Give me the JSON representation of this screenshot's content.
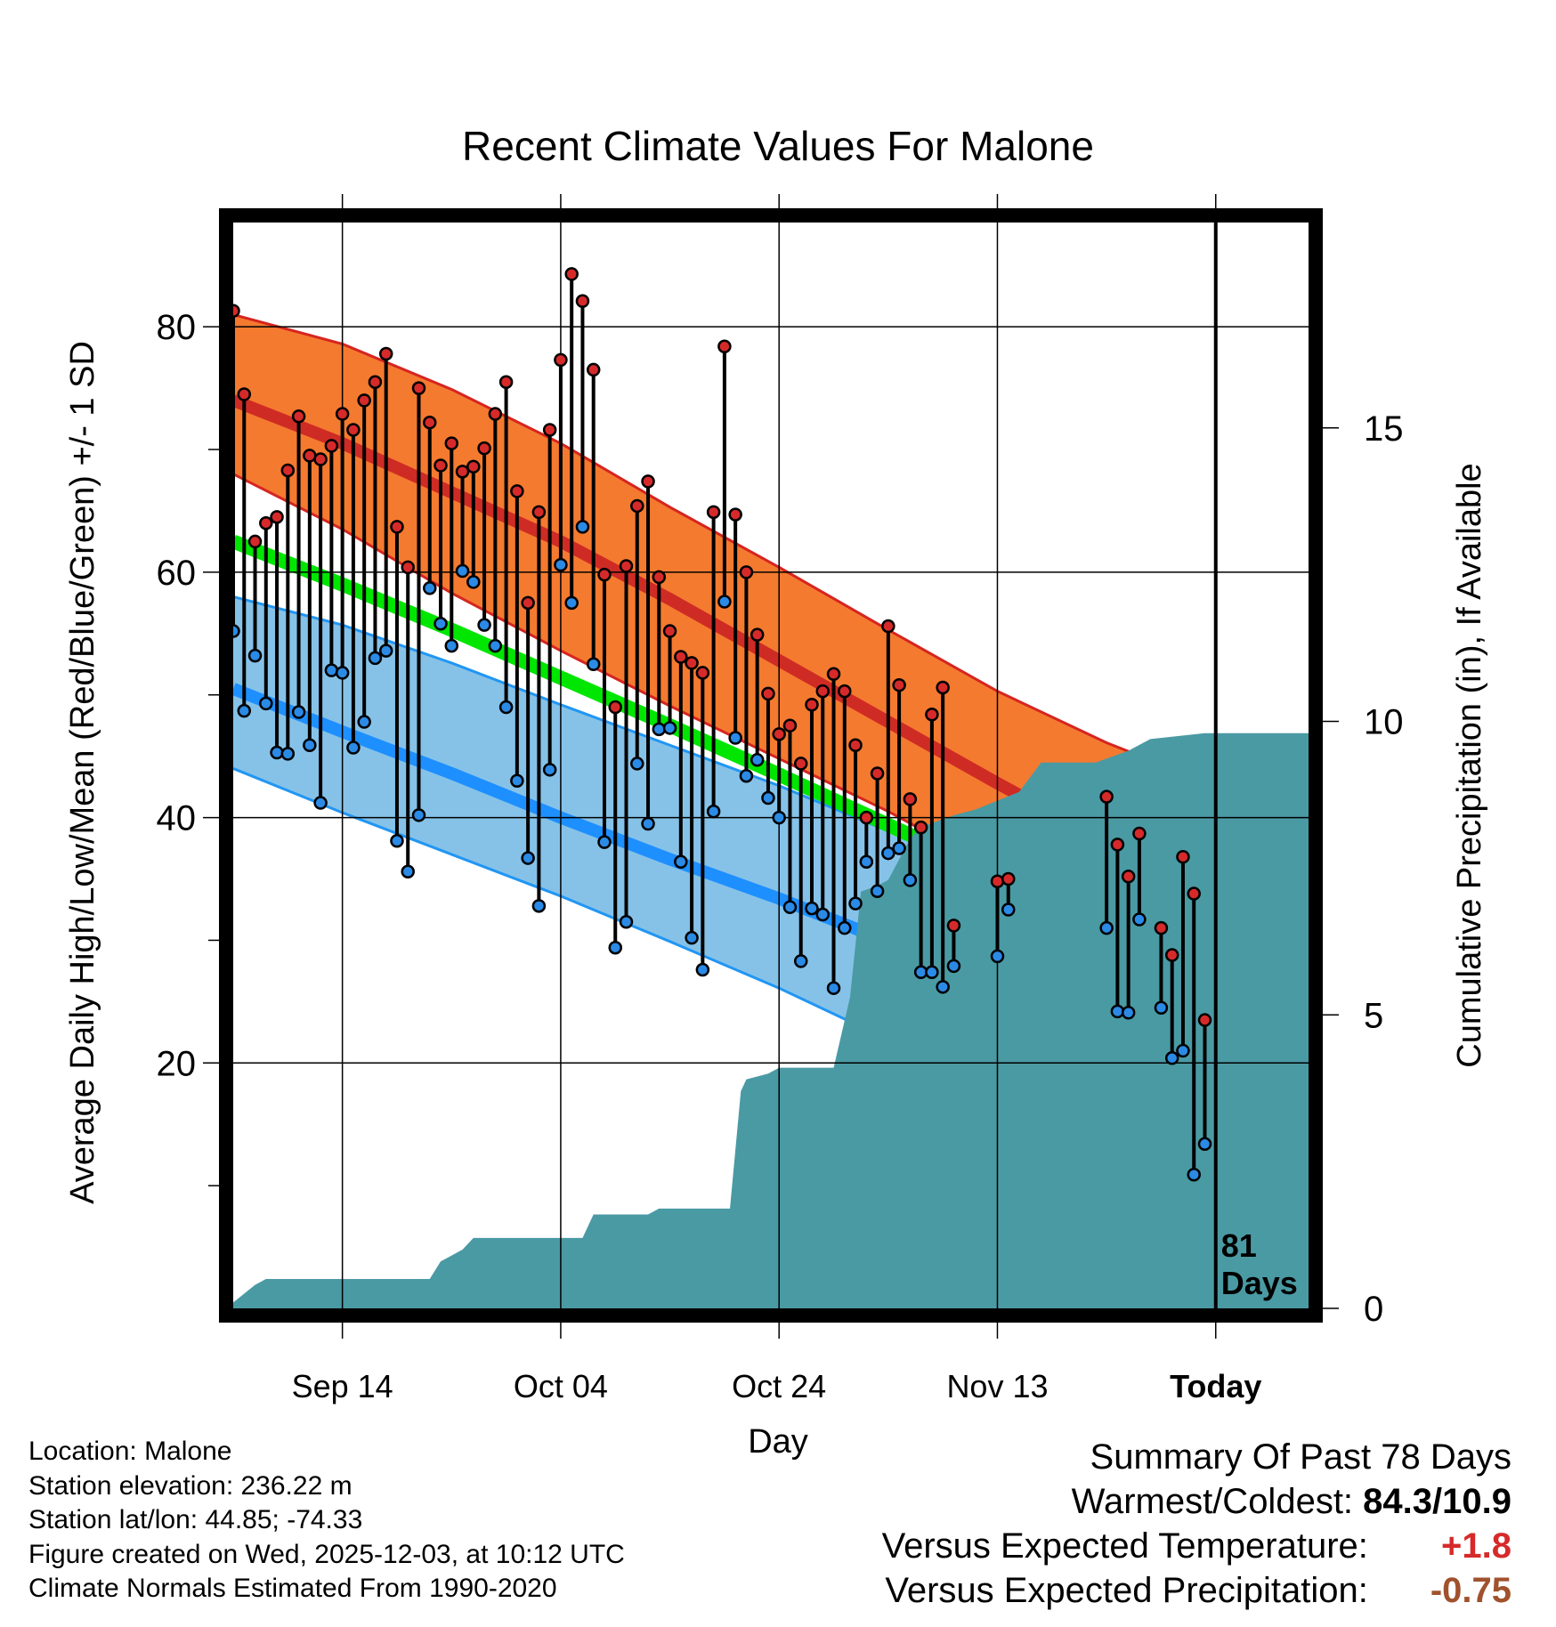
{
  "chart_data": {
    "type": "line",
    "title": "Recent Climate Values For Malone",
    "xlabel": "Day",
    "ylabel": "Average Daily High/Low/Mean (Red/Blue/Green) +/- 1 SD",
    "y2label": "Cumulative Precipitation (in), If Available",
    "ylim": [
      0,
      88.5
    ],
    "y2lim": [
      0,
      18.5
    ],
    "xlim_days": [
      0,
      98.5
    ],
    "y_ticks": [
      20,
      40,
      60,
      80
    ],
    "y2_ticks": [
      0,
      5,
      10,
      15
    ],
    "x_ticks": [
      {
        "day": 10,
        "label": "Sep 14"
      },
      {
        "day": 30,
        "label": "Oct 04"
      },
      {
        "day": 50,
        "label": "Oct 24"
      },
      {
        "day": 70,
        "label": "Nov 13"
      },
      {
        "day": 90,
        "label": "Today"
      }
    ],
    "today_day": 90,
    "days_label": "81\nDays",
    "colors": {
      "high_band": "#f47a2f",
      "high_band_edge": "#d62520",
      "high_mean": "#cf2b25",
      "low_band": "#86c2e8",
      "low_band_edge": "#2196f3",
      "low_mean": "#1e8fff",
      "mean": "#00e600",
      "overlap_dark": "#8b1010",
      "precip": "#4a9aa4",
      "high_dot": "#d62a2a",
      "low_dot": "#2a8ae6"
    },
    "normals": {
      "days": [
        0,
        10,
        20,
        30,
        40,
        50,
        60,
        70,
        80,
        90,
        99
      ],
      "high_mean": [
        74.0,
        70.5,
        66.5,
        62.5,
        57.8,
        52.8,
        47.8,
        42.8,
        38.0,
        34.0,
        31.0
      ],
      "high_upper": [
        81.0,
        78.6,
        74.9,
        70.5,
        65.3,
        60.4,
        55.3,
        50.3,
        46.1,
        42.6,
        39.7
      ],
      "high_lower": [
        68.0,
        63.5,
        58.3,
        53.6,
        49.1,
        44.8,
        40.5,
        35.7,
        31.2,
        27.0,
        22.0
      ],
      "low_mean": [
        50.5,
        47.0,
        43.6,
        40.0,
        36.6,
        33.4,
        29.9,
        26.4,
        22.7,
        19.0,
        14.5
      ],
      "low_upper": [
        58.0,
        55.7,
        52.6,
        49.2,
        45.9,
        42.6,
        38.9,
        35.3,
        32.2,
        29.7,
        28.5
      ],
      "low_lower": [
        44.0,
        40.4,
        37.0,
        33.6,
        29.9,
        26.1,
        21.9,
        17.0,
        12.3,
        8.0,
        4.0
      ],
      "mean": [
        62.5,
        59.0,
        55.3,
        51.4,
        47.5,
        43.5,
        39.4,
        35.3,
        30.8,
        26.5,
        23.5
      ]
    },
    "observations": [
      {
        "day": 0,
        "high": 81.3,
        "low": 55.2
      },
      {
        "day": 1,
        "high": 74.5,
        "low": 48.7
      },
      {
        "day": 2,
        "high": 62.5,
        "low": 53.2
      },
      {
        "day": 3,
        "high": 64.0,
        "low": 49.3
      },
      {
        "day": 4,
        "high": 64.5,
        "low": 45.3
      },
      {
        "day": 5,
        "high": 68.3,
        "low": 45.2
      },
      {
        "day": 6,
        "high": 72.7,
        "low": 48.6
      },
      {
        "day": 7,
        "high": 69.5,
        "low": 45.9
      },
      {
        "day": 8,
        "high": 69.2,
        "low": 41.2
      },
      {
        "day": 9,
        "high": 70.3,
        "low": 52.0
      },
      {
        "day": 10,
        "high": 72.9,
        "low": 51.8
      },
      {
        "day": 11,
        "high": 71.6,
        "low": 45.7
      },
      {
        "day": 12,
        "high": 74.0,
        "low": 47.8
      },
      {
        "day": 13,
        "high": 75.5,
        "low": 53.0
      },
      {
        "day": 14,
        "high": 77.8,
        "low": 53.6
      },
      {
        "day": 15,
        "high": 63.7,
        "low": 38.1
      },
      {
        "day": 16,
        "high": 60.4,
        "low": 35.6
      },
      {
        "day": 17,
        "high": 75.0,
        "low": 40.2
      },
      {
        "day": 18,
        "high": 72.2,
        "low": 58.7
      },
      {
        "day": 19,
        "high": 68.7,
        "low": 55.8
      },
      {
        "day": 20,
        "high": 70.5,
        "low": 54.0
      },
      {
        "day": 21,
        "high": 68.2,
        "low": 60.1
      },
      {
        "day": 22,
        "high": 68.6,
        "low": 59.2
      },
      {
        "day": 23,
        "high": 70.1,
        "low": 55.7
      },
      {
        "day": 24,
        "high": 72.9,
        "low": 54.0
      },
      {
        "day": 25,
        "high": 75.5,
        "low": 49.0
      },
      {
        "day": 26,
        "high": 66.6,
        "low": 43.0
      },
      {
        "day": 27,
        "high": 57.5,
        "low": 36.7
      },
      {
        "day": 28,
        "high": 64.9,
        "low": 32.8
      },
      {
        "day": 29,
        "high": 71.6,
        "low": 43.9
      },
      {
        "day": 30,
        "high": 77.3,
        "low": 60.6
      },
      {
        "day": 31,
        "high": 84.3,
        "low": 57.5
      },
      {
        "day": 32,
        "high": 82.1,
        "low": 63.7
      },
      {
        "day": 33,
        "high": 76.5,
        "low": 52.5
      },
      {
        "day": 34,
        "high": 59.8,
        "low": 38.0
      },
      {
        "day": 35,
        "high": 49.0,
        "low": 29.4
      },
      {
        "day": 36,
        "high": 60.5,
        "low": 31.5
      },
      {
        "day": 37,
        "high": 65.4,
        "low": 44.4
      },
      {
        "day": 38,
        "high": 67.4,
        "low": 39.5
      },
      {
        "day": 39,
        "high": 59.6,
        "low": 47.2
      },
      {
        "day": 40,
        "high": 55.2,
        "low": 47.3
      },
      {
        "day": 41,
        "high": 53.1,
        "low": 36.4
      },
      {
        "day": 42,
        "high": 52.6,
        "low": 30.2
      },
      {
        "day": 43,
        "high": 51.8,
        "low": 27.6
      },
      {
        "day": 44,
        "high": 64.9,
        "low": 40.5
      },
      {
        "day": 45,
        "high": 78.4,
        "low": 57.6
      },
      {
        "day": 46,
        "high": 64.7,
        "low": 46.5
      },
      {
        "day": 47,
        "high": 60.0,
        "low": 43.4
      },
      {
        "day": 48,
        "high": 54.9,
        "low": 44.7
      },
      {
        "day": 49,
        "high": 50.1,
        "low": 41.6
      },
      {
        "day": 50,
        "high": 46.8,
        "low": 40.0
      },
      {
        "day": 51,
        "high": 47.5,
        "low": 32.7
      },
      {
        "day": 52,
        "high": 44.4,
        "low": 28.3
      },
      {
        "day": 53,
        "high": 49.2,
        "low": 32.6
      },
      {
        "day": 54,
        "high": 50.3,
        "low": 32.1
      },
      {
        "day": 55,
        "high": 51.7,
        "low": 26.1
      },
      {
        "day": 56,
        "high": 50.3,
        "low": 31.0
      },
      {
        "day": 57,
        "high": 45.9,
        "low": 33.0
      },
      {
        "day": 58,
        "high": 40.0,
        "low": 36.4
      },
      {
        "day": 59,
        "high": 43.6,
        "low": 34.0
      },
      {
        "day": 60,
        "high": 55.6,
        "low": 37.1
      },
      {
        "day": 61,
        "high": 50.8,
        "low": 37.5
      },
      {
        "day": 62,
        "high": 41.5,
        "low": 34.9
      },
      {
        "day": 63,
        "high": 39.2,
        "low": 27.4
      },
      {
        "day": 64,
        "high": 48.4,
        "low": 27.4
      },
      {
        "day": 65,
        "high": 50.6,
        "low": 26.2
      },
      {
        "day": 66,
        "high": 31.2,
        "low": 27.9
      },
      {
        "day": 70,
        "high": 34.8,
        "low": 28.7
      },
      {
        "day": 71,
        "high": 35.0,
        "low": 32.5
      },
      {
        "day": 80,
        "high": 41.7,
        "low": 31.0
      },
      {
        "day": 81,
        "high": 37.8,
        "low": 24.2
      },
      {
        "day": 82,
        "high": 35.2,
        "low": 24.1
      },
      {
        "day": 83,
        "high": 38.7,
        "low": 31.7
      },
      {
        "day": 85,
        "high": 31.0,
        "low": 24.5
      },
      {
        "day": 86,
        "high": 28.8,
        "low": 20.4
      },
      {
        "day": 87,
        "high": 36.8,
        "low": 21.0
      },
      {
        "day": 88,
        "high": 33.8,
        "low": 10.9
      },
      {
        "day": 89,
        "high": 23.5,
        "low": 13.4
      }
    ],
    "cumulative_precip": {
      "days": [
        0,
        2,
        3,
        18,
        19,
        21,
        22,
        32,
        33,
        38,
        39,
        45.5,
        46.5,
        47,
        49,
        50,
        52,
        55,
        56.5,
        57.5,
        59,
        60,
        62,
        63,
        66,
        68,
        72,
        74,
        79,
        82,
        84,
        89,
        90,
        99
      ],
      "values": [
        0.1,
        0.4,
        0.5,
        0.5,
        0.8,
        1.0,
        1.2,
        1.2,
        1.6,
        1.6,
        1.7,
        1.7,
        3.7,
        3.9,
        4.0,
        4.1,
        4.1,
        4.1,
        5.3,
        7.1,
        7.2,
        7.3,
        8.0,
        8.2,
        8.4,
        8.5,
        8.8,
        9.3,
        9.3,
        9.5,
        9.7,
        9.8,
        9.8,
        9.8
      ]
    }
  },
  "info": {
    "location": "Location: Malone",
    "elevation": "Station elevation: 236.22 m",
    "latlon": "Station lat/lon: 44.85; -74.33",
    "created": "Figure created on Wed, 2025-12-03, at 10:12 UTC",
    "normals": "Climate Normals Estimated From 1990-2020"
  },
  "summary": {
    "heading": "Summary Of Past 78 Days",
    "warm_cold_label": "Warmest/Coldest:",
    "warm_cold_value": "84.3/10.9",
    "temp_label": "Versus Expected Temperature:",
    "temp_value": "+1.8",
    "temp_color": "#d62a2a",
    "precip_label": "Versus Expected Precipitation:",
    "precip_value": "-0.75",
    "precip_color": "#a0522d"
  }
}
